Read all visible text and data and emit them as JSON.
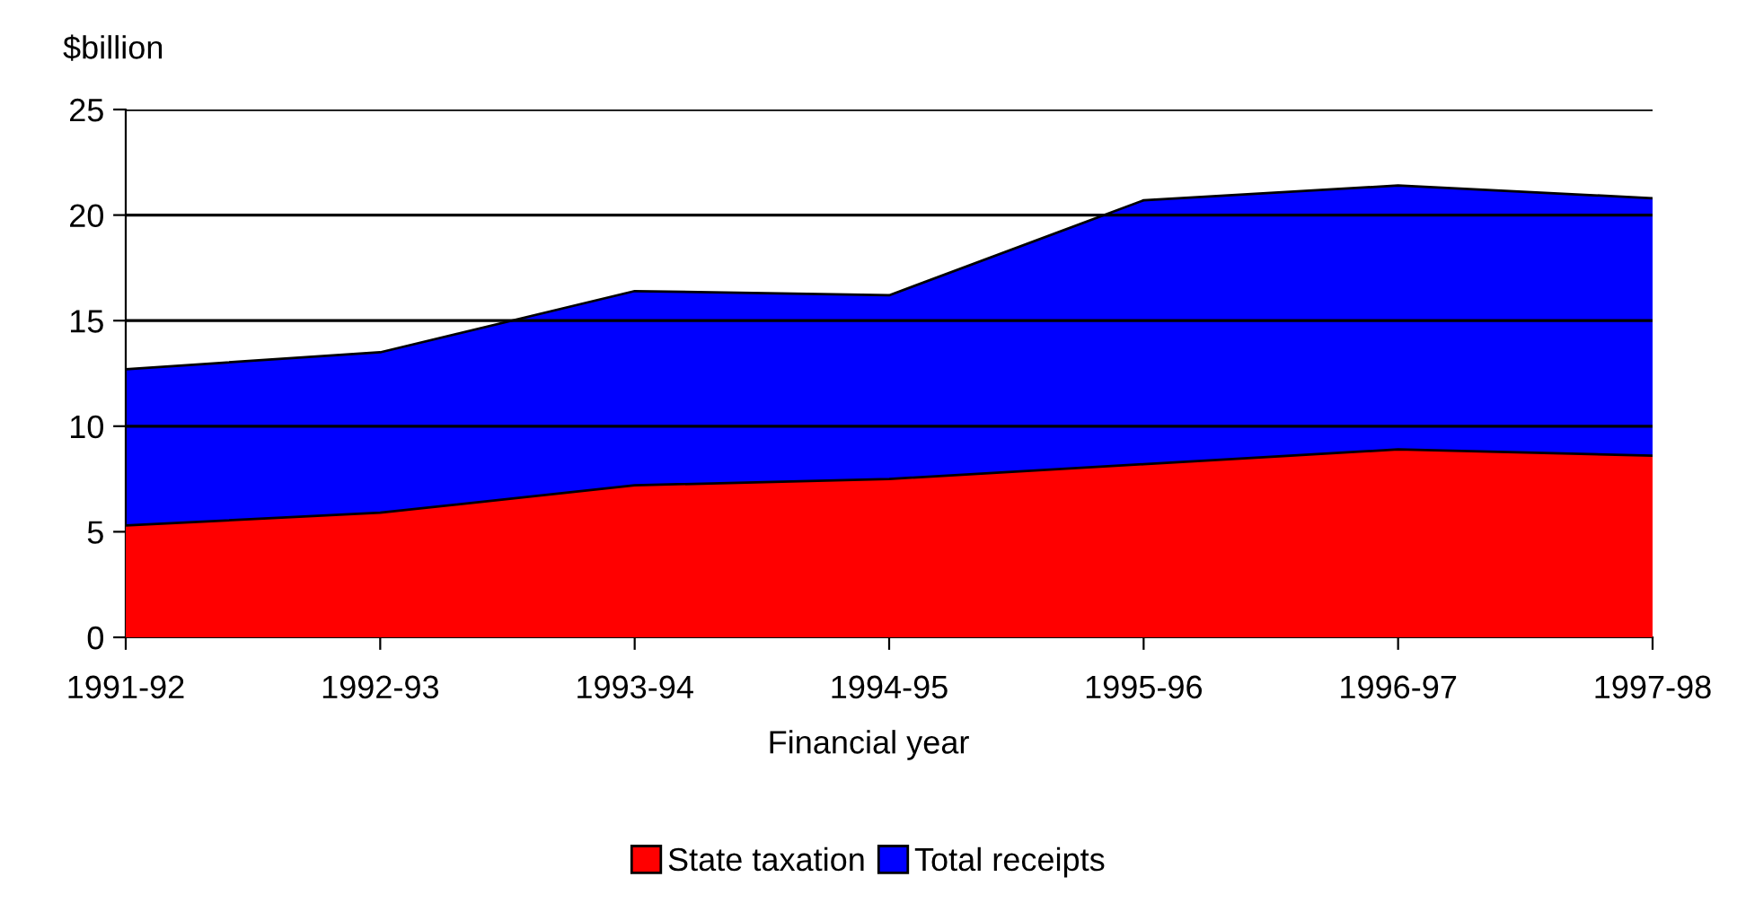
{
  "chart_data": {
    "type": "area",
    "ylabel": "$billion",
    "xlabel": "Financial year",
    "categories": [
      "1991-92",
      "1992-93",
      "1993-94",
      "1994-95",
      "1995-96",
      "1996-97",
      "1997-98"
    ],
    "series": [
      {
        "name": "State taxation",
        "color": "#ff0000",
        "values": [
          5.3,
          5.9,
          7.2,
          7.5,
          8.2,
          8.9,
          8.6
        ]
      },
      {
        "name": "Total receipts",
        "color": "#0000ff",
        "values": [
          12.7,
          13.5,
          16.4,
          16.2,
          20.7,
          21.4,
          20.8
        ]
      }
    ],
    "ylim": [
      0,
      25
    ],
    "yticks": [
      0,
      5,
      10,
      15,
      20,
      25
    ],
    "grid": "y",
    "legend": "bottom"
  }
}
